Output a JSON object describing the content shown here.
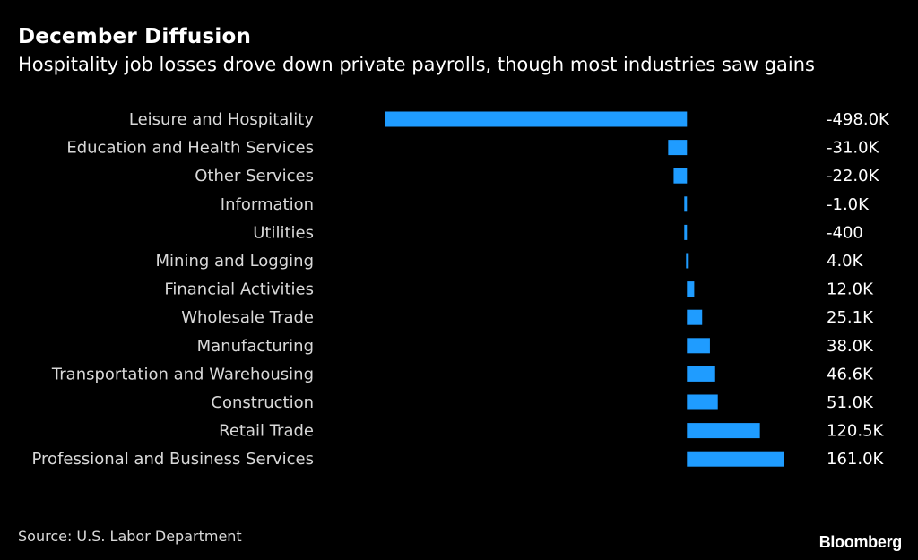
{
  "chart_data": {
    "type": "bar",
    "orientation": "horizontal",
    "title": "December Diffusion",
    "subtitle": "Hospitality job losses drove down private payrolls, though most industries saw gains",
    "categories": [
      "Leisure and Hospitality",
      "Education and Health Services",
      "Other Services",
      "Information",
      "Utilities",
      "Mining and Logging",
      "Financial Activities",
      "Wholesale Trade",
      "Manufacturing",
      "Transportation and Warehousing",
      "Construction",
      "Retail Trade",
      "Professional and Business Services"
    ],
    "values": [
      -498000,
      -31000,
      -22000,
      -1000,
      -400,
      4000,
      12000,
      25100,
      38000,
      46600,
      51000,
      120500,
      161000
    ],
    "value_labels": [
      "-498.0K",
      "-31.0K",
      "-22.0K",
      "-1.0K",
      "-400",
      "4.0K",
      "12.0K",
      "25.1K",
      "38.0K",
      "46.6K",
      "51.0K",
      "120.5K",
      "161.0K"
    ],
    "xlim": [
      -498000,
      161000
    ],
    "bar_color": "#1f9cff",
    "grid": false,
    "legend": "none"
  },
  "source": "Source: U.S. Labor Department",
  "brand": "Bloomberg",
  "colors": {
    "background": "#000000",
    "bar": "#1f9cff",
    "text": "#ffffff",
    "muted_text": "#d9d9d9"
  }
}
